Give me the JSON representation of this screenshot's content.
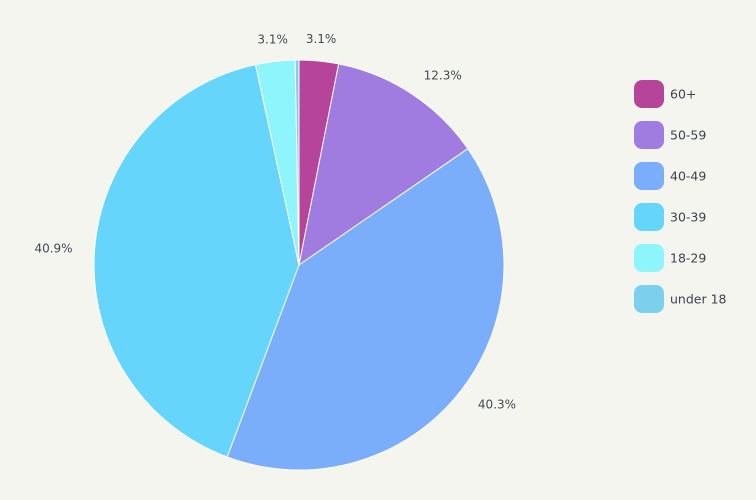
{
  "chart_data": {
    "type": "pie",
    "title": "",
    "categories": [
      "60+",
      "50-59",
      "40-49",
      "30-39",
      "18-29",
      "under 18"
    ],
    "values": [
      3.1,
      12.3,
      40.3,
      40.9,
      3.1,
      0.3
    ],
    "labels": [
      "3.1%",
      "12.3%",
      "40.3%",
      "40.9%",
      "3.1%",
      ""
    ],
    "colors": [
      "#b5449a",
      "#a07be0",
      "#7aadfa",
      "#66d5fc",
      "#8ef5fc",
      "#7dcfee"
    ],
    "start_angle_deg": 0,
    "direction": "clockwise",
    "legend_position": "right"
  }
}
